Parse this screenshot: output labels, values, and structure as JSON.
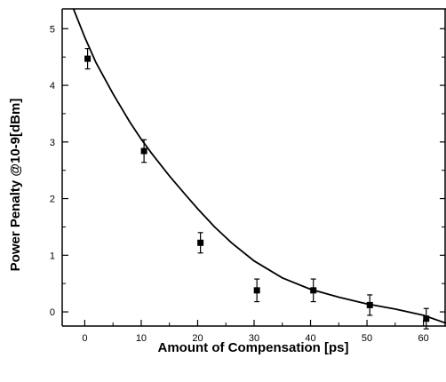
{
  "chart_data": {
    "type": "scatter",
    "title": "",
    "xlabel": "Amount of Compensation [ps]",
    "ylabel": "Power Penalty @10-9[dBm]",
    "xlim": [
      -4,
      64
    ],
    "ylim": [
      -0.25,
      5.35
    ],
    "x_ticks": [
      0,
      10,
      20,
      30,
      40,
      50,
      60
    ],
    "y_ticks": [
      0,
      1,
      2,
      3,
      4,
      5
    ],
    "grid": false,
    "legend": "none",
    "series": [
      {
        "kind": "points_with_error_bars",
        "x": [
          0.5,
          10.5,
          20.5,
          30.5,
          40.5,
          50.5,
          60.5
        ],
        "y": [
          4.47,
          2.84,
          1.22,
          0.38,
          0.38,
          0.12,
          -0.12
        ],
        "yerr": [
          0.18,
          0.2,
          0.18,
          0.2,
          0.2,
          0.18,
          0.18
        ]
      },
      {
        "kind": "fit_curve",
        "x": [
          -2,
          0,
          2,
          5,
          8,
          10,
          12,
          15,
          18,
          20,
          23,
          26,
          30,
          35,
          40,
          45,
          50,
          55,
          60,
          64
        ],
        "y": [
          5.35,
          4.85,
          4.4,
          3.85,
          3.35,
          3.05,
          2.78,
          2.4,
          2.05,
          1.82,
          1.5,
          1.22,
          0.9,
          0.6,
          0.4,
          0.26,
          0.14,
          0.05,
          -0.06,
          -0.2
        ]
      }
    ],
    "colors": {
      "axis": "#000000",
      "marker": "#000000",
      "curve": "#000000"
    }
  }
}
